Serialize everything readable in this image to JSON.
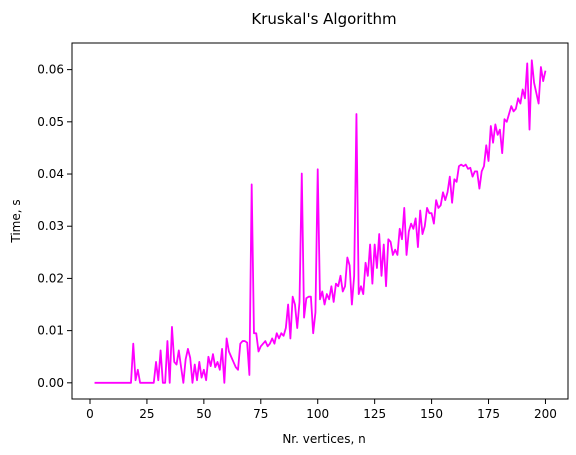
{
  "chart_data": {
    "type": "line",
    "title": "Kruskal's Algorithm",
    "xlabel": "Nr. vertices, n",
    "ylabel": "Time, s",
    "xlim": [
      -7.9,
      209.9
    ],
    "ylim": [
      -0.0031,
      0.0651
    ],
    "x_ticks": [
      0,
      25,
      50,
      75,
      100,
      125,
      150,
      175,
      200
    ],
    "x_tick_labels": [
      "0",
      "25",
      "50",
      "75",
      "100",
      "125",
      "150",
      "175",
      "200"
    ],
    "y_ticks": [
      0.0,
      0.01,
      0.02,
      0.03,
      0.04,
      0.05,
      0.06
    ],
    "y_tick_labels": [
      "0.00",
      "0.01",
      "0.02",
      "0.03",
      "0.04",
      "0.05",
      "0.06"
    ],
    "grid": false,
    "legend": "none",
    "series": [
      {
        "color": "#ff00ff",
        "points": [
          [
            2,
            0.0
          ],
          [
            5,
            0.0
          ],
          [
            10,
            0.0
          ],
          [
            15,
            0.0
          ],
          [
            18,
            0.0
          ],
          [
            19,
            0.0075
          ],
          [
            20,
            0.0005
          ],
          [
            21,
            0.0025
          ],
          [
            22,
            0.0
          ],
          [
            25,
            0.0
          ],
          [
            28,
            0.0
          ],
          [
            29,
            0.004
          ],
          [
            30,
            0.0005
          ],
          [
            31,
            0.0062
          ],
          [
            32,
            0.0
          ],
          [
            33,
            0.0
          ],
          [
            34,
            0.008
          ],
          [
            35,
            0.0
          ],
          [
            36,
            0.0107
          ],
          [
            37,
            0.004
          ],
          [
            38,
            0.0035
          ],
          [
            39,
            0.0062
          ],
          [
            40,
            0.003
          ],
          [
            41,
            0.0
          ],
          [
            42,
            0.0045
          ],
          [
            43,
            0.0065
          ],
          [
            44,
            0.0048
          ],
          [
            45,
            0.0
          ],
          [
            46,
            0.0035
          ],
          [
            47,
            0.0005
          ],
          [
            48,
            0.004
          ],
          [
            49,
            0.001
          ],
          [
            50,
            0.0025
          ],
          [
            51,
            0.0005
          ],
          [
            52,
            0.005
          ],
          [
            53,
            0.0032
          ],
          [
            54,
            0.0055
          ],
          [
            55,
            0.003
          ],
          [
            56,
            0.004
          ],
          [
            57,
            0.0025
          ],
          [
            58,
            0.0065
          ],
          [
            59,
            0.0
          ],
          [
            60,
            0.0085
          ],
          [
            61,
            0.006
          ],
          [
            62,
            0.005
          ],
          [
            63,
            0.004
          ],
          [
            64,
            0.003
          ],
          [
            65,
            0.0025
          ],
          [
            66,
            0.0075
          ],
          [
            67,
            0.008
          ],
          [
            68,
            0.008
          ],
          [
            69,
            0.0077
          ],
          [
            70,
            0.0015
          ],
          [
            71,
            0.038
          ],
          [
            72,
            0.0095
          ],
          [
            73,
            0.0095
          ],
          [
            74,
            0.006
          ],
          [
            75,
            0.007
          ],
          [
            76,
            0.0075
          ],
          [
            77,
            0.008
          ],
          [
            78,
            0.007
          ],
          [
            79,
            0.0075
          ],
          [
            80,
            0.0085
          ],
          [
            81,
            0.0075
          ],
          [
            82,
            0.0095
          ],
          [
            83,
            0.0085
          ],
          [
            84,
            0.0095
          ],
          [
            85,
            0.009
          ],
          [
            86,
            0.0105
          ],
          [
            87,
            0.015
          ],
          [
            88,
            0.0085
          ],
          [
            89,
            0.0165
          ],
          [
            90,
            0.015
          ],
          [
            91,
            0.0105
          ],
          [
            92,
            0.0155
          ],
          [
            93,
            0.0401
          ],
          [
            94,
            0.0125
          ],
          [
            95,
            0.0162
          ],
          [
            96,
            0.0165
          ],
          [
            97,
            0.0165
          ],
          [
            98,
            0.0095
          ],
          [
            99,
            0.0135
          ],
          [
            100,
            0.0409
          ],
          [
            101,
            0.016
          ],
          [
            102,
            0.0175
          ],
          [
            103,
            0.015
          ],
          [
            104,
            0.017
          ],
          [
            105,
            0.016
          ],
          [
            106,
            0.0185
          ],
          [
            107,
            0.0155
          ],
          [
            108,
            0.019
          ],
          [
            109,
            0.0185
          ],
          [
            110,
            0.0205
          ],
          [
            111,
            0.0175
          ],
          [
            112,
            0.0185
          ],
          [
            113,
            0.024
          ],
          [
            114,
            0.0225
          ],
          [
            115,
            0.015
          ],
          [
            116,
            0.0205
          ],
          [
            117,
            0.0515
          ],
          [
            118,
            0.017
          ],
          [
            119,
            0.0185
          ],
          [
            120,
            0.017
          ],
          [
            121,
            0.023
          ],
          [
            122,
            0.0205
          ],
          [
            123,
            0.0265
          ],
          [
            124,
            0.019
          ],
          [
            125,
            0.0265
          ],
          [
            126,
            0.022
          ],
          [
            127,
            0.0285
          ],
          [
            128,
            0.0205
          ],
          [
            129,
            0.0265
          ],
          [
            130,
            0.0185
          ],
          [
            131,
            0.0275
          ],
          [
            132,
            0.027
          ],
          [
            133,
            0.0245
          ],
          [
            134,
            0.0255
          ],
          [
            135,
            0.0245
          ],
          [
            136,
            0.0295
          ],
          [
            137,
            0.0275
          ],
          [
            138,
            0.0335
          ],
          [
            139,
            0.0245
          ],
          [
            140,
            0.029
          ],
          [
            141,
            0.0305
          ],
          [
            142,
            0.0295
          ],
          [
            143,
            0.0315
          ],
          [
            144,
            0.026
          ],
          [
            145,
            0.033
          ],
          [
            146,
            0.0285
          ],
          [
            147,
            0.03
          ],
          [
            148,
            0.0335
          ],
          [
            149,
            0.0325
          ],
          [
            150,
            0.0325
          ],
          [
            151,
            0.0305
          ],
          [
            152,
            0.035
          ],
          [
            153,
            0.0335
          ],
          [
            154,
            0.034
          ],
          [
            155,
            0.0365
          ],
          [
            156,
            0.035
          ],
          [
            157,
            0.0365
          ],
          [
            158,
            0.0395
          ],
          [
            159,
            0.0345
          ],
          [
            160,
            0.039
          ],
          [
            161,
            0.0385
          ],
          [
            162,
            0.0415
          ],
          [
            163,
            0.0418
          ],
          [
            164,
            0.0415
          ],
          [
            165,
            0.0418
          ],
          [
            166,
            0.041
          ],
          [
            167,
            0.0412
          ],
          [
            168,
            0.0395
          ],
          [
            169,
            0.0405
          ],
          [
            170,
            0.0405
          ],
          [
            171,
            0.0372
          ],
          [
            172,
            0.0405
          ],
          [
            173,
            0.0415
          ],
          [
            174,
            0.0455
          ],
          [
            175,
            0.0425
          ],
          [
            176,
            0.0492
          ],
          [
            177,
            0.046
          ],
          [
            178,
            0.0495
          ],
          [
            179,
            0.0475
          ],
          [
            180,
            0.0485
          ],
          [
            181,
            0.044
          ],
          [
            182,
            0.0505
          ],
          [
            183,
            0.05
          ],
          [
            184,
            0.0515
          ],
          [
            185,
            0.053
          ],
          [
            186,
            0.052
          ],
          [
            187,
            0.0525
          ],
          [
            188,
            0.0545
          ],
          [
            189,
            0.0535
          ],
          [
            190,
            0.0562
          ],
          [
            191,
            0.0545
          ],
          [
            192,
            0.0612
          ],
          [
            193,
            0.0485
          ],
          [
            194,
            0.0618
          ],
          [
            195,
            0.0575
          ],
          [
            196,
            0.0555
          ],
          [
            197,
            0.0535
          ],
          [
            198,
            0.0605
          ],
          [
            199,
            0.0578
          ],
          [
            200,
            0.0598
          ]
        ]
      }
    ]
  }
}
